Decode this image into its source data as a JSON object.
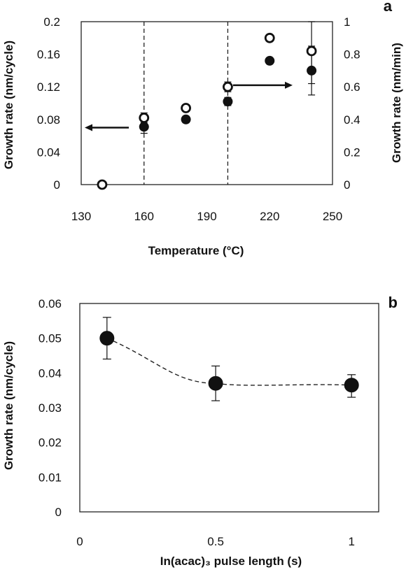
{
  "chart_data": [
    {
      "panel": "a",
      "type": "scatter",
      "xlabel": "Temperature (°C)",
      "ylabel_left": "Growth rate (nm/cycle)",
      "ylabel_right": "Growth rate (nm/min)",
      "xlim": [
        130,
        250
      ],
      "ylim_left": [
        0,
        0.2
      ],
      "ylim_right": [
        0,
        1
      ],
      "xticks": [
        "130",
        "160",
        "190",
        "220",
        "250"
      ],
      "yticks_left": [
        "0",
        "0.04",
        "0.08",
        "0.12",
        "0.16",
        "0.2"
      ],
      "yticks_right": [
        "0",
        "0.2",
        "0.4",
        "0.6",
        "0.8",
        "1"
      ],
      "vlines": [
        160,
        200
      ],
      "grid": false,
      "series": [
        {
          "marker": "filled-circle",
          "axis": "left",
          "points": [
            {
              "x": 160,
              "y": 0.071,
              "err": 0.008
            },
            {
              "x": 180,
              "y": 0.08,
              "err": 0.004
            },
            {
              "x": 200,
              "y": 0.102,
              "err": 0.005
            },
            {
              "x": 220,
              "y": 0.152,
              "err": 0.002
            },
            {
              "x": 240,
              "y": 0.14,
              "err": 0.03
            }
          ]
        },
        {
          "marker": "open-circle",
          "axis": "right",
          "points": [
            {
              "x": 140,
              "y": 0.0,
              "err": 0
            },
            {
              "x": 160,
              "y": 0.41,
              "err": 0.03
            },
            {
              "x": 180,
              "y": 0.47,
              "err": 0.02
            },
            {
              "x": 200,
              "y": 0.6,
              "err": 0.03
            },
            {
              "x": 220,
              "y": 0.9,
              "err": 0
            },
            {
              "x": 240,
              "y": 0.82,
              "err": 0.2
            }
          ]
        }
      ],
      "arrows": [
        {
          "direction": "left",
          "points_to_axis": "left"
        },
        {
          "direction": "right",
          "points_to_axis": "right"
        }
      ]
    },
    {
      "panel": "b",
      "type": "scatter",
      "xlabel": "In(acac)₃ pulse length (s)",
      "ylabel": "Growth rate (nm/cycle)",
      "xlim": [
        0,
        1.1
      ],
      "ylim": [
        0,
        0.06
      ],
      "xticks": [
        "0",
        "0.5",
        "1"
      ],
      "yticks": [
        "0",
        "0.01",
        "0.02",
        "0.03",
        "0.04",
        "0.05",
        "0.06"
      ],
      "grid": false,
      "trendline": "dashed",
      "series": [
        {
          "marker": "filled-circle",
          "points": [
            {
              "x": 0.1,
              "y": 0.05,
              "err_up": 0.006,
              "err_down": 0.006
            },
            {
              "x": 0.5,
              "y": 0.037,
              "err_up": 0.005,
              "err_down": 0.005
            },
            {
              "x": 1.0,
              "y": 0.0365,
              "err_up": 0.003,
              "err_down": 0.0035
            }
          ]
        }
      ]
    }
  ]
}
